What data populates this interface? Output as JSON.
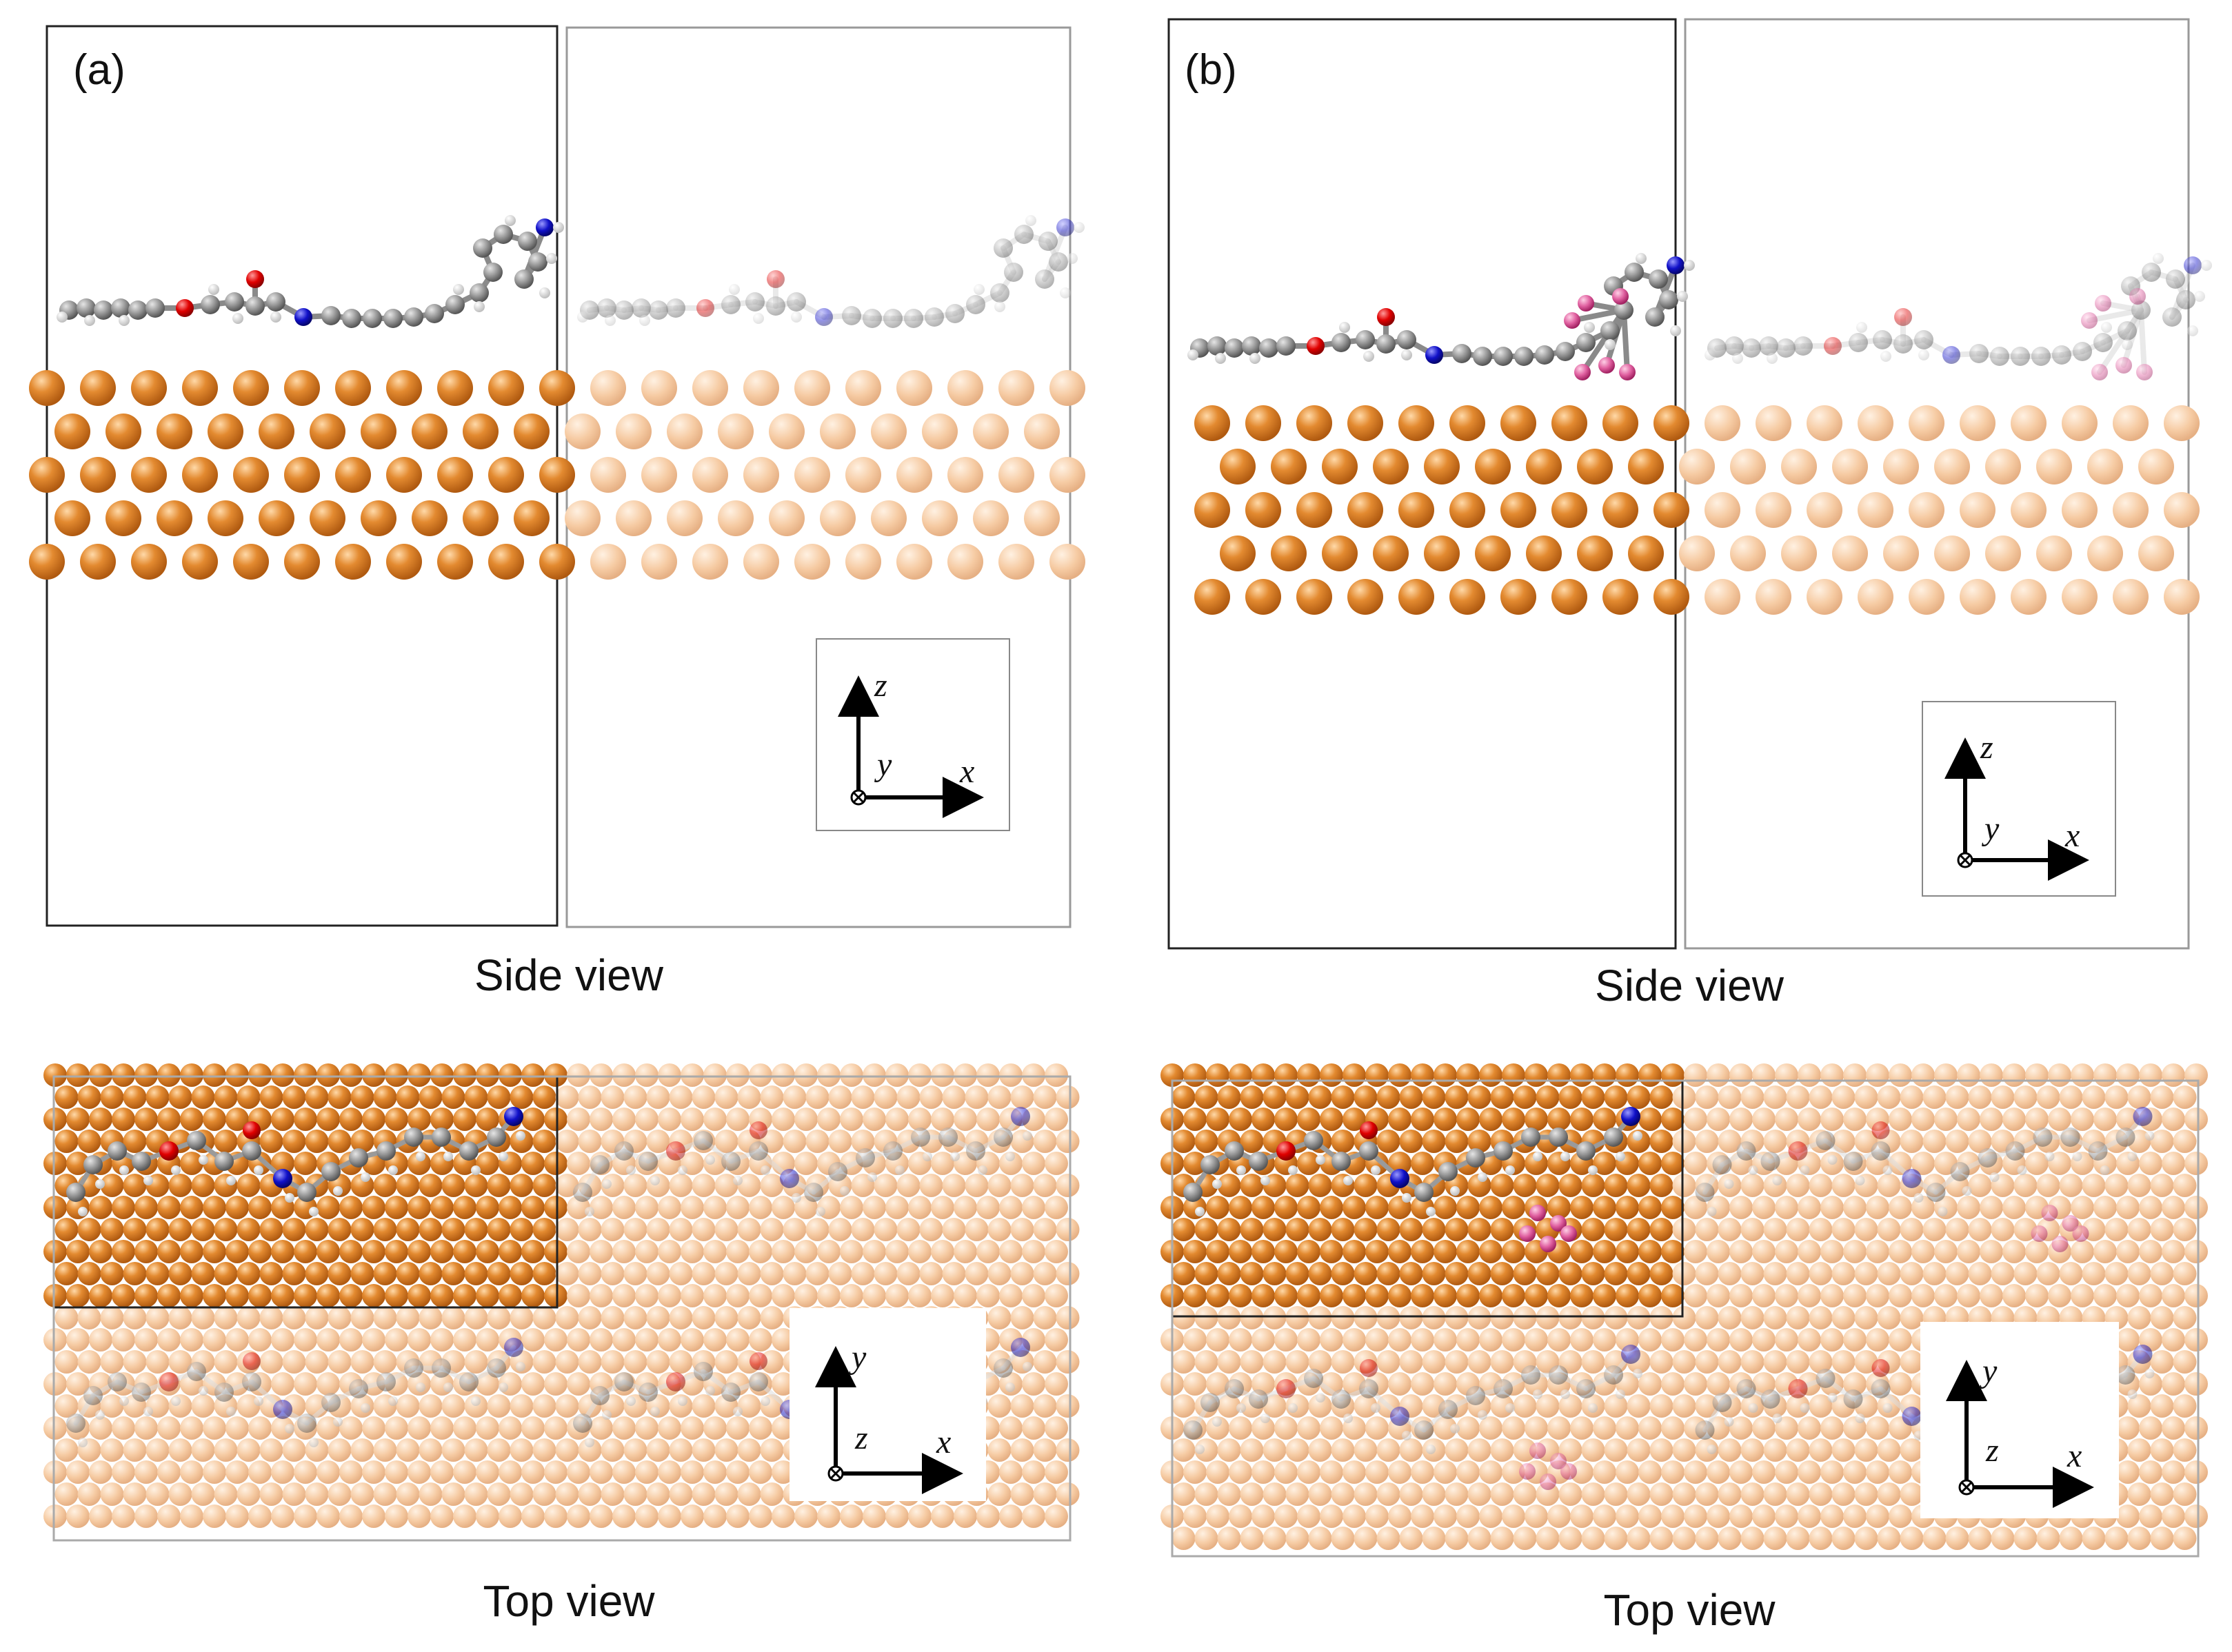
{
  "panels": [
    {
      "id": "a",
      "label": "(a)",
      "side_caption": "Side view",
      "top_caption": "Top view",
      "side_axes": {
        "up": "z",
        "right": "x",
        "into": "y"
      },
      "top_axes": {
        "up": "y",
        "right": "x",
        "out": "z"
      },
      "has_fluoro_group": false
    },
    {
      "id": "b",
      "label": "(b)",
      "side_caption": "Side view",
      "top_caption": "Top view",
      "side_axes": {
        "up": "z",
        "right": "x",
        "into": "y"
      },
      "top_axes": {
        "up": "y",
        "right": "x",
        "out": "z"
      },
      "has_fluoro_group": true
    }
  ],
  "colors": {
    "copper": "#e0872e",
    "copper_faded": "#f5c9a0",
    "carbon": "#8e8e8e",
    "hydrogen": "#f2f2f2",
    "oxygen": "#e00000",
    "nitrogen": "#1010c8",
    "fluorine": "#e060a0"
  },
  "icons": {
    "into_page_marker": "circle-cross-icon",
    "axis_arrow": "arrow-icon"
  }
}
